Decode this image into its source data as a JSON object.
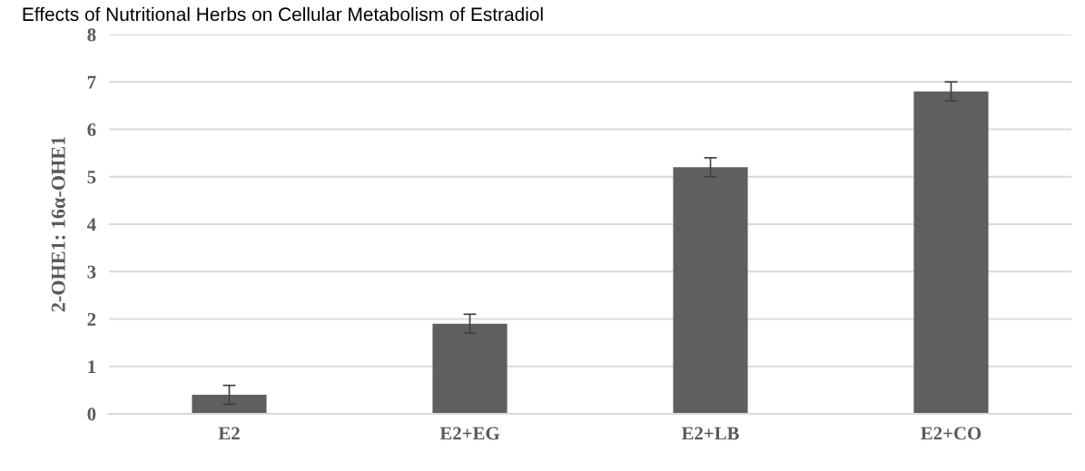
{
  "chart_data": {
    "type": "bar",
    "title": "Effects of Nutritional Herbs on Cellular Metabolism of Estradiol",
    "ylabel": "2-OHE1: 16α-OHE1",
    "categories": [
      "E2",
      "E2+EG",
      "E2+LB",
      "E2+CO"
    ],
    "values": [
      0.4,
      1.9,
      5.2,
      6.8
    ],
    "errors": [
      0.2,
      0.2,
      0.2,
      0.2
    ],
    "color": "#5f5f5f",
    "ylim": [
      0,
      8
    ],
    "yticks": [
      0,
      1,
      2,
      3,
      4,
      5,
      6,
      7,
      8
    ],
    "grid": "y"
  }
}
